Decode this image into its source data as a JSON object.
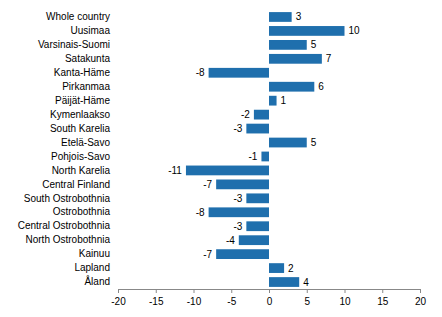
{
  "chart_data": {
    "type": "bar",
    "orientation": "horizontal",
    "categories": [
      "Whole country",
      "Uusimaa",
      "Varsinais-Suomi",
      "Satakunta",
      "Kanta-Häme",
      "Pirkanmaa",
      "Päijät-Häme",
      "Kymenlaakso",
      "South Karelia",
      "Etelä-Savo",
      "Pohjois-Savo",
      "North Karelia",
      "Central Finland",
      "South Ostrobothnia",
      "Ostrobothnia",
      "Central Ostrobothnia",
      "North Ostrobothnia",
      "Kainuu",
      "Lapland",
      "Åland"
    ],
    "values": [
      3,
      10,
      5,
      7,
      -8,
      6,
      1,
      -2,
      -3,
      5,
      -1,
      -11,
      -7,
      -3,
      -8,
      -3,
      -4,
      -7,
      2,
      4
    ],
    "color": "#1f6fad",
    "xlim": [
      -20,
      20
    ],
    "xticks": [
      -20,
      -15,
      -10,
      -5,
      0,
      5,
      10,
      15,
      20
    ],
    "grid": false,
    "data_labels": true
  }
}
